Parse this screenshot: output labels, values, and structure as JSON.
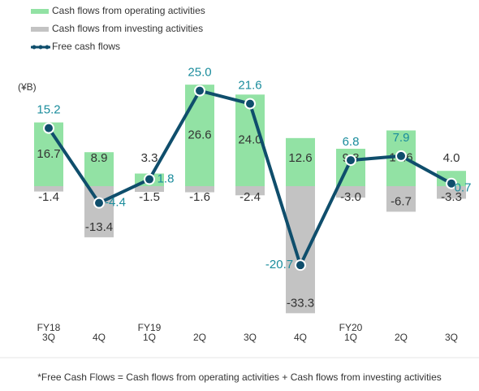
{
  "chart_data": {
    "type": "bar-line",
    "unit_label": "(¥B)",
    "categories": [
      [
        "FY18",
        "3Q"
      ],
      [
        "4Q"
      ],
      [
        "FY19",
        "1Q"
      ],
      [
        "2Q"
      ],
      [
        "3Q"
      ],
      [
        "4Q"
      ],
      [
        "FY20",
        "1Q"
      ],
      [
        "2Q"
      ],
      [
        "3Q"
      ]
    ],
    "series": [
      {
        "name": "Cash flows from operating activities",
        "kind": "bar",
        "color": "#92e2a4",
        "values": [
          16.7,
          8.9,
          3.3,
          26.6,
          24.0,
          12.6,
          9.8,
          14.6,
          4.0
        ],
        "value_labels": [
          "16.7",
          "8.9",
          "3.3",
          "26.6",
          "24.0",
          "12.6",
          "9.8",
          "14.6",
          "4.0"
        ]
      },
      {
        "name": "Cash flows from investing activities",
        "kind": "bar",
        "color": "#c3c3c3",
        "values": [
          -1.4,
          -13.4,
          -1.5,
          -1.6,
          -2.4,
          -33.3,
          -3.0,
          -6.7,
          -3.3
        ],
        "value_labels": [
          "-1.4",
          "-13.4",
          "-1.5",
          "-1.6",
          "-2.4",
          "-33.3",
          "-3.0",
          "-6.7",
          "-3.3"
        ]
      },
      {
        "name": "Free cash flows",
        "kind": "line",
        "color": "#0f4e6c",
        "label_color": "#1a8c9c",
        "values": [
          15.2,
          -4.4,
          1.8,
          25.0,
          21.6,
          -20.7,
          6.8,
          7.9,
          0.7
        ],
        "value_labels": [
          "15.2",
          "-4.4",
          "1.8",
          "25.0",
          "21.6",
          "-20.7",
          "6.8",
          "7.9",
          "0.7"
        ]
      }
    ],
    "ylim": [
      -36,
      36
    ],
    "footnote": "*Free Cash Flows = Cash flows from operating activities + Cash flows from investing activities"
  }
}
